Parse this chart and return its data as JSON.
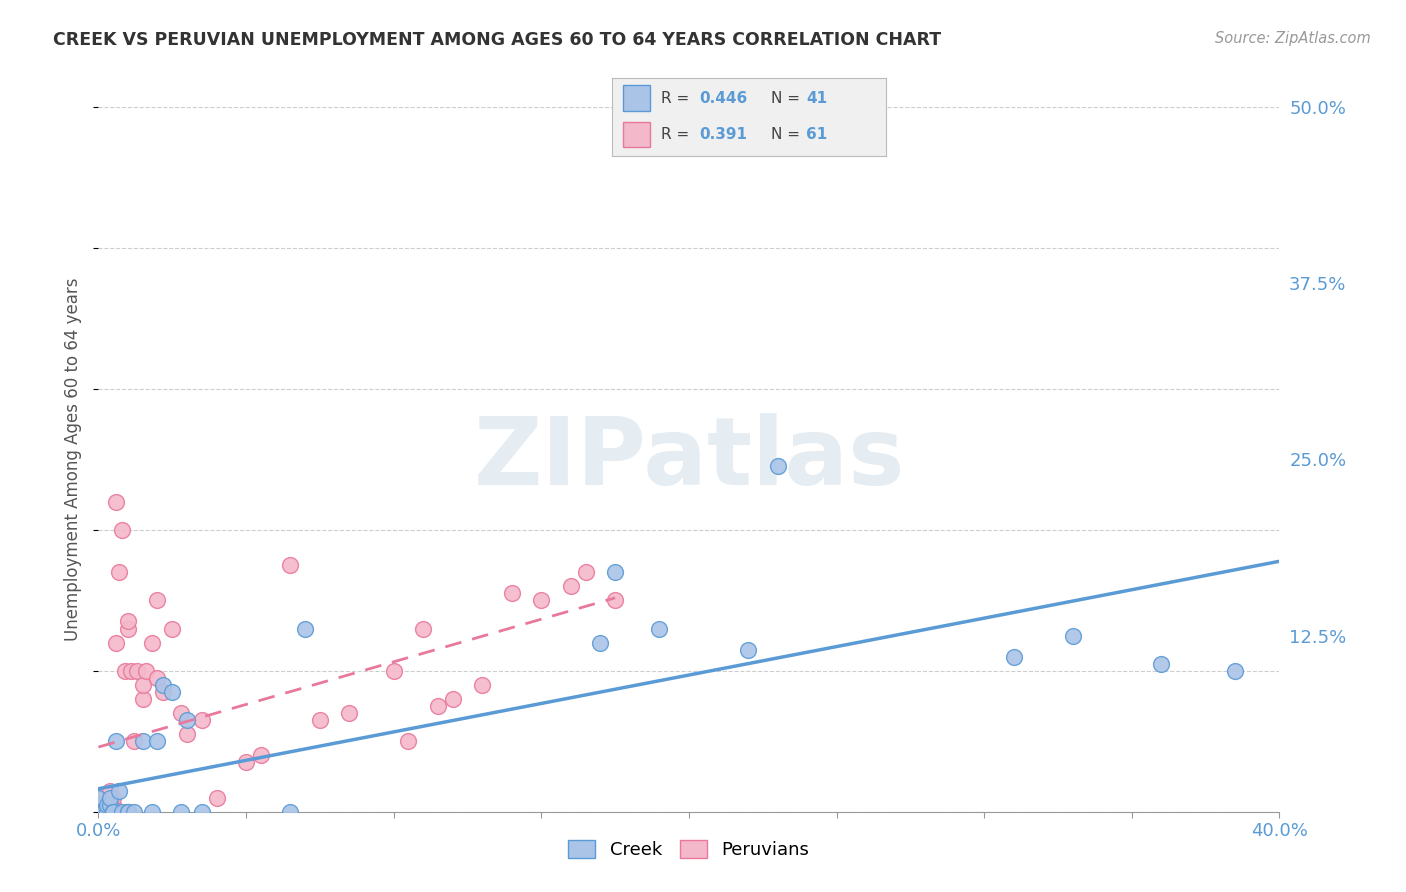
{
  "title": "CREEK VS PERUVIAN UNEMPLOYMENT AMONG AGES 60 TO 64 YEARS CORRELATION CHART",
  "source": "Source: ZipAtlas.com",
  "ylabel": "Unemployment Among Ages 60 to 64 years",
  "xlim": [
    0.0,
    0.4
  ],
  "ylim": [
    0.0,
    0.5
  ],
  "xticks": [
    0.0,
    0.05,
    0.1,
    0.15,
    0.2,
    0.25,
    0.3,
    0.35,
    0.4
  ],
  "yticks_right": [
    0.0,
    0.125,
    0.25,
    0.375,
    0.5
  ],
  "yticklabels_right": [
    "",
    "12.5%",
    "25.0%",
    "37.5%",
    "50.0%"
  ],
  "background_color": "#ffffff",
  "grid_color": "#c8c8c8",
  "creek_color": "#aac4e8",
  "peruvian_color": "#f4b8cb",
  "creek_line_color": "#5b9bd5",
  "peruvian_line_color": "#e8799a",
  "creek_R": 0.446,
  "creek_N": 41,
  "peruvian_R": 0.391,
  "peruvian_N": 61,
  "watermark": "ZIPatlas",
  "creek_x": [
    0.0,
    0.0,
    0.0,
    0.0,
    0.0,
    0.001,
    0.001,
    0.001,
    0.002,
    0.002,
    0.003,
    0.003,
    0.004,
    0.004,
    0.005,
    0.005,
    0.006,
    0.007,
    0.008,
    0.01,
    0.01,
    0.012,
    0.015,
    0.018,
    0.02,
    0.022,
    0.025,
    0.028,
    0.03,
    0.035,
    0.065,
    0.07,
    0.17,
    0.175,
    0.19,
    0.22,
    0.23,
    0.31,
    0.33,
    0.36,
    0.385
  ],
  "creek_y": [
    0.0,
    0.0,
    0.0,
    0.005,
    0.01,
    0.0,
    0.0,
    0.0,
    0.0,
    0.0,
    0.0,
    0.005,
    0.005,
    0.01,
    0.0,
    0.0,
    0.05,
    0.015,
    0.0,
    0.0,
    0.0,
    0.0,
    0.05,
    0.0,
    0.05,
    0.09,
    0.085,
    0.0,
    0.065,
    0.0,
    0.0,
    0.13,
    0.12,
    0.17,
    0.13,
    0.115,
    0.245,
    0.11,
    0.125,
    0.105,
    0.1
  ],
  "peruvian_x": [
    0.0,
    0.0,
    0.0,
    0.0,
    0.0,
    0.0,
    0.0,
    0.001,
    0.001,
    0.001,
    0.002,
    0.002,
    0.003,
    0.003,
    0.004,
    0.004,
    0.005,
    0.005,
    0.006,
    0.006,
    0.007,
    0.008,
    0.009,
    0.01,
    0.01,
    0.011,
    0.012,
    0.013,
    0.015,
    0.015,
    0.016,
    0.018,
    0.02,
    0.02,
    0.022,
    0.025,
    0.028,
    0.03,
    0.035,
    0.04,
    0.05,
    0.055,
    0.065,
    0.075,
    0.085,
    0.1,
    0.105,
    0.11,
    0.115,
    0.12,
    0.13,
    0.14,
    0.15,
    0.16,
    0.165,
    0.175,
    0.0,
    0.001,
    0.002,
    0.006,
    0.01
  ],
  "peruvian_y": [
    0.0,
    0.0,
    0.0,
    0.0,
    0.005,
    0.005,
    0.01,
    0.0,
    0.0,
    0.005,
    0.0,
    0.005,
    0.0,
    0.005,
    0.01,
    0.015,
    0.005,
    0.01,
    0.12,
    0.22,
    0.17,
    0.2,
    0.1,
    0.13,
    0.135,
    0.1,
    0.05,
    0.1,
    0.08,
    0.09,
    0.1,
    0.12,
    0.095,
    0.15,
    0.085,
    0.13,
    0.07,
    0.055,
    0.065,
    0.01,
    0.035,
    0.04,
    0.175,
    0.065,
    0.07,
    0.1,
    0.05,
    0.13,
    0.075,
    0.08,
    0.09,
    0.155,
    0.15,
    0.16,
    0.17,
    0.15,
    0.0,
    0.0,
    0.0,
    0.0,
    0.0
  ]
}
